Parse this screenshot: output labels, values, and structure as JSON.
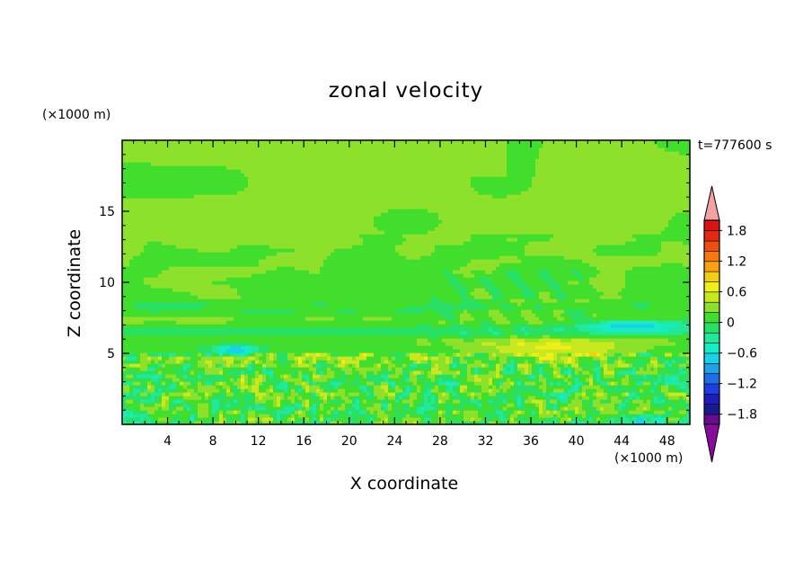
{
  "chart_data": {
    "type": "heatmap",
    "title": "zonal velocity",
    "xlabel": "X coordinate",
    "ylabel": "Z coordinate",
    "x_unit_label": "(×1000 m)",
    "y_unit_label": "(×1000 m)",
    "time_label": "t=777600 s",
    "xlim": [
      0,
      50
    ],
    "ylim": [
      0,
      20
    ],
    "x_ticks": [
      4,
      8,
      12,
      16,
      20,
      24,
      28,
      32,
      36,
      40,
      44,
      48
    ],
    "y_ticks": [
      5,
      10,
      15
    ],
    "colorbar": {
      "min": -2.0,
      "max": 2.0,
      "step": 0.2,
      "tick_values": [
        -1.8,
        -1.2,
        -0.6,
        0,
        0.6,
        1.2,
        1.8
      ],
      "tick_labels": [
        "−1.8",
        "−1.2",
        "−0.6",
        "0",
        "0.6",
        "1.2",
        "1.8"
      ],
      "colors": [
        "#6a0a8f",
        "#1a1a8c",
        "#1d1dbf",
        "#1e3fe0",
        "#1e6ee6",
        "#1fa2e8",
        "#19d2e6",
        "#18ecc7",
        "#22e99a",
        "#29e066",
        "#42de2e",
        "#8ee12a",
        "#c8e81f",
        "#f0ee18",
        "#f6cc14",
        "#f5a312",
        "#f27a10",
        "#ee4e10",
        "#e22a12",
        "#d81414"
      ],
      "over_color": "#f4a1a1",
      "under_color": "#8a0a9c"
    },
    "field_description": "Mostly near zero (green/cyan); positive band ~0.4-0.8 near z=5 between x=34-42; negative streaks ~-1.2 near z=5.5 at x=10 and z=7 at x=43-50; noisy small-scale structure below z=5; large area near 0.2 in upper region 14-20 km."
  }
}
